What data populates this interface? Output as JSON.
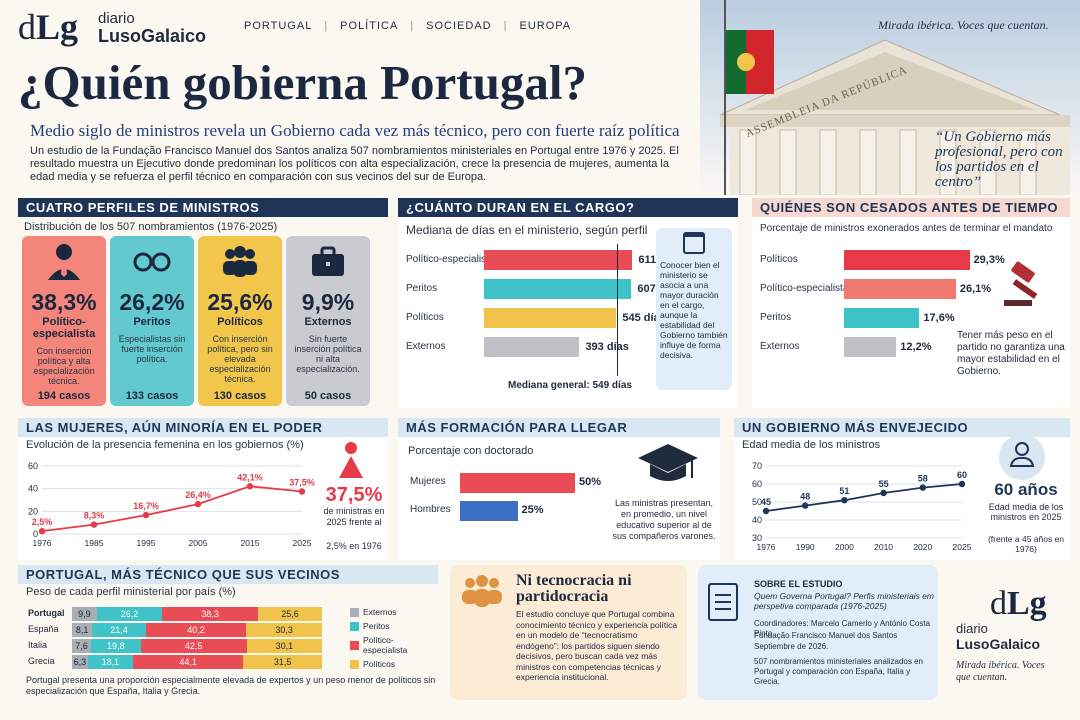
{
  "brand": {
    "top": "diario",
    "name": "LusoGalaico",
    "mark_a": "d",
    "mark_b": "Lg"
  },
  "nav": [
    "PORTUGAL",
    "POLÍTICA",
    "SOCIEDAD",
    "EUROPA"
  ],
  "tagline": "Mirada ibérica. Voces que cuentan.",
  "title": "¿Quién gobierna Portugal?",
  "subtitle": "Medio siglo de ministros revela un Gobierno cada vez más técnico, pero con fuerte raíz política",
  "intro": "Un estudio de la Fundação Francisco Manuel dos Santos analiza 507 nombramientos ministeriales en Portugal entre 1976 y 2025. El resultado muestra un Ejecutivo donde predominan los políticos con alta especialización, crece la presencia de mujeres, aumenta la edad media y se refuerza el perfil técnico en comparación con sus vecinos del sur de Europa.",
  "building_text": "ASSEMBLEIA DA REPÚBLICA",
  "quote": "“Un Gobierno más profesional, pero con los partidos en el centro”",
  "profiles": {
    "title": "CUATRO PERFILES DE MINISTROS",
    "subtitle": "Distribución de los 507 nombramientos (1976-2025)",
    "cards": [
      {
        "icon": "person-tie-icon",
        "pct": "38,3%",
        "name": "Político-especialista",
        "desc": "Con inserción política y alta especialización técnica.",
        "cases": "194 casos",
        "color": "#f3857a"
      },
      {
        "icon": "glasses-icon",
        "pct": "26,2%",
        "name": "Peritos",
        "desc": "Especialistas sin fuerte inserción política.",
        "cases": "133 casos",
        "color": "#62c9d0"
      },
      {
        "icon": "group-icon",
        "pct": "25,6%",
        "name": "Políticos",
        "desc": "Con inserción política, pero sin elevada especialización técnica.",
        "cases": "130 casos",
        "color": "#f2c64a"
      },
      {
        "icon": "briefcase-icon",
        "pct": "9,9%",
        "name": "Externos",
        "desc": "Sin fuerte inserción política ni alta especialización.",
        "cases": "50 casos",
        "color": "#c9cbd0"
      }
    ]
  },
  "duration": {
    "title": "¿CUÁNTO DURAN EN EL CARGO?",
    "subtitle": "Mediana de días en el ministerio, según perfil",
    "rows": [
      {
        "label": "Político-especialista",
        "value": 611,
        "text": "611 días",
        "color": "#e94c55"
      },
      {
        "label": "Peritos",
        "value": 607,
        "text": "607 días",
        "color": "#3fc3c8"
      },
      {
        "label": "Políticos",
        "value": 545,
        "text": "545 días",
        "color": "#f1c34a"
      },
      {
        "label": "Externos",
        "value": 393,
        "text": "393 días",
        "color": "#bfc1c6"
      }
    ],
    "median": 549,
    "median_text": "Mediana general: 549 días",
    "note": "Conocer bien el ministerio se asocia a una mayor duración en el cargo, aunque la estabilidad del Gobierno también influye de forma decisiva."
  },
  "dismissed": {
    "title": "QUIÉNES SON CESADOS ANTES DE TIEMPO",
    "subtitle": "Porcentaje de ministros exonerados antes de terminar el mandato",
    "rows": [
      {
        "label": "Políticos",
        "value": 29.3,
        "text": "29,3%",
        "color": "#e63a48"
      },
      {
        "label": "Político-especialista",
        "value": 26.1,
        "text": "26,1%",
        "color": "#f07a6f"
      },
      {
        "label": "Peritos",
        "value": 17.6,
        "text": "17,6%",
        "color": "#3fc3c8"
      },
      {
        "label": "Externos",
        "value": 12.2,
        "text": "12,2%",
        "color": "#bfc1c6"
      }
    ],
    "note": "Tener más peso en el partido no garantiza una mayor estabilidad en el Gobierno."
  },
  "women": {
    "title": "LAS MUJERES, AÚN MINORÍA EN EL PODER",
    "subtitle": "Evolución de la presencia femenina en los gobiernos (%)",
    "big": "37,5%",
    "big_desc": "de ministras en 2025 frente al",
    "big_desc2": "2,5% en 1976"
  },
  "education": {
    "title": "MÁS FORMACIÓN PARA LLEGAR",
    "subtitle": "Porcentaje con doctorado",
    "rows": [
      {
        "label": "Mujeres",
        "value": 50,
        "text": "50%",
        "color": "#e94c55"
      },
      {
        "label": "Hombres",
        "value": 25,
        "text": "25%",
        "color": "#3a6fc4"
      }
    ],
    "note": "Las ministras presentan, en promedio, un nivel educativo superior al de sus compañeros varones."
  },
  "age": {
    "title": "UN GOBIERNO MÁS ENVEJECIDO",
    "subtitle": "Edad media de los ministros",
    "big": "60 años",
    "desc": "Edad media de los ministros en 2025",
    "desc2": "(frente a 45 años en 1976)"
  },
  "compare": {
    "title": "PORTUGAL, MÁS TÉCNICO QUE SUS VECINOS",
    "subtitle": "Peso de cada perfil ministerial por país (%)",
    "legend": [
      {
        "label": "Externos",
        "color": "#a9adb4"
      },
      {
        "label": "Peritos",
        "color": "#3fc3c8"
      },
      {
        "label": "Político-especialista",
        "color": "#e94c55"
      },
      {
        "label": "Políticos",
        "color": "#f1c34a"
      }
    ],
    "rows": [
      {
        "country": "Portugal",
        "vals": [
          9.9,
          26.2,
          38.3,
          25.6
        ],
        "txt": [
          "9,9",
          "26,2",
          "38,3",
          "25,6"
        ]
      },
      {
        "country": "España",
        "vals": [
          8.1,
          21.4,
          40.2,
          30.3
        ],
        "txt": [
          "8,1",
          "21,4",
          "40,2",
          "30,3"
        ]
      },
      {
        "country": "Italia",
        "vals": [
          7.6,
          19.8,
          42.5,
          30.1
        ],
        "txt": [
          "7,6",
          "19,8",
          "42,5",
          "30,1"
        ]
      },
      {
        "country": "Grecia",
        "vals": [
          6.3,
          18.1,
          44.1,
          31.5
        ],
        "txt": [
          "6,3",
          "18,1",
          "44,1",
          "31,5"
        ]
      }
    ],
    "note": "Portugal presenta una proporción especialmente elevada de expertos y un peso menor de políticos sin especialización que España, Italia y Grecia."
  },
  "conclusion": {
    "title": "Ni tecnocracia ni partidocracia",
    "text": "El estudio concluye que Portugal combina conocimiento técnico y experiencia política en un modelo de “tecnocratismo endógeno”: los partidos siguen siendo decisivos, pero buscan cada vez más ministros con competencias técnicas y experiencia institucional."
  },
  "about": {
    "title": "SOBRE EL ESTUDIO",
    "work": "Quem Governa Portugal? Perfis ministeriais em perspetiva comparada (1976-2025)",
    "coord": "Coordinadores: Marcelo Camerlo y António Costa Pinto",
    "org": "Fundação Francisco Manuel dos Santos",
    "date": "Septiembre de 2026.",
    "extra": "507 nombramientos ministeriales analizados en Portugal y comparación con España, Italia y Grecia."
  },
  "chart_data": [
    {
      "type": "line",
      "title": "Evolución de la presencia femenina en los gobiernos (%)",
      "x": [
        1976,
        1985,
        1995,
        2005,
        2015,
        2025
      ],
      "values": [
        2.5,
        8.3,
        16.7,
        26.4,
        42.1,
        37.5
      ],
      "labels": [
        "2,5%",
        "8,3%",
        "16,7%",
        "26,4%",
        "42,1%",
        "37,5%"
      ],
      "ylim": [
        0,
        60
      ],
      "yticks": [
        0,
        20,
        40,
        60
      ],
      "color": "#e63a48"
    },
    {
      "type": "line",
      "title": "Edad media de los ministros",
      "x": [
        1976,
        1990,
        2000,
        2010,
        2020,
        2025
      ],
      "values": [
        45,
        48,
        51,
        55,
        58,
        60
      ],
      "labels": [
        "45",
        "48",
        "51",
        "55",
        "58",
        "60"
      ],
      "ylim": [
        30,
        70
      ],
      "yticks": [
        30,
        40,
        50,
        60,
        70
      ],
      "color": "#1f3557"
    }
  ]
}
